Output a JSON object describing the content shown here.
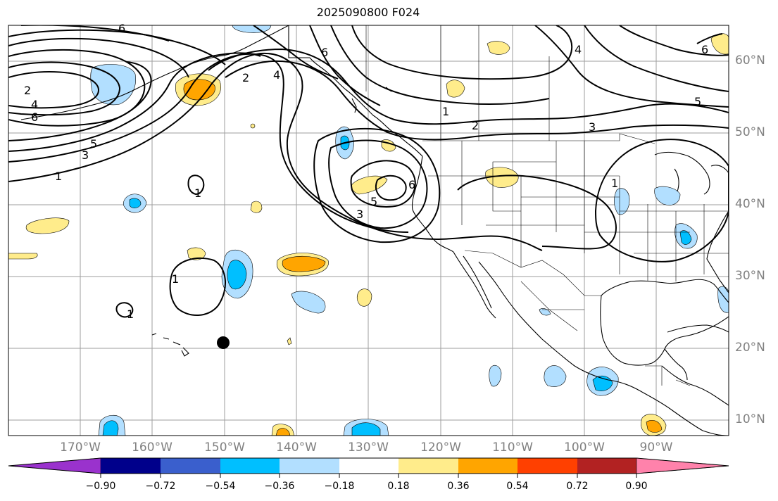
{
  "title": "2025090800 F024",
  "lat_labels": [
    "60°N",
    "50°N",
    "40°N",
    "30°N",
    "20°N",
    "10°N"
  ],
  "lon_labels": [
    "170°W",
    "160°W",
    "150°W",
    "140°W",
    "130°W",
    "120°W",
    "110°W",
    "100°W",
    "90°W"
  ],
  "contour_labels": [
    "1",
    "2",
    "3",
    "4",
    "5",
    "6"
  ],
  "colorbar": {
    "ticks": [
      "−0.90",
      "−0.72",
      "−0.54",
      "−0.36",
      "−0.18",
      "0.18",
      "0.36",
      "0.54",
      "0.72",
      "0.90"
    ],
    "colors": [
      "#9a32cd",
      "#00008b",
      "#3a5fcd",
      "#00bfff",
      "#b2dfff",
      "#ffffff",
      "#ffec8b",
      "#ffa500",
      "#ff4000",
      "#b22222",
      "#ff82ab"
    ]
  },
  "colors": {
    "grid": "#9e9e9e",
    "coast": "#000000",
    "label": "#808080"
  }
}
